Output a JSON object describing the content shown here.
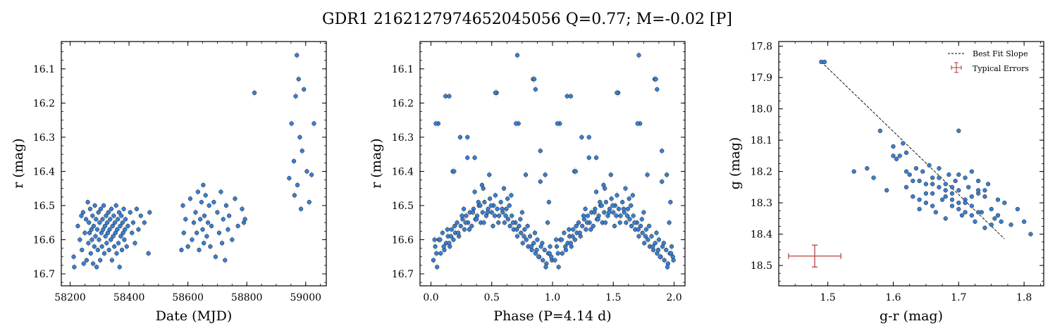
{
  "figure": {
    "title": "GDR1 2162127974652045056  Q=0.77; M=-0.02 [P]"
  },
  "chart_data": [
    {
      "type": "scatter",
      "id": "lightcurve",
      "xlabel": "Date (MJD)",
      "ylabel": "r (mag)",
      "xlim": [
        58170,
        59070
      ],
      "ylim": [
        16.735,
        16.02
      ],
      "y_inverted": true,
      "xticks": [
        58200,
        58400,
        58600,
        58800,
        59000
      ],
      "yticks": [
        16.1,
        16.2,
        16.3,
        16.4,
        16.5,
        16.6,
        16.7
      ],
      "xtick_labels": [
        "58200",
        "58400",
        "58600",
        "58800",
        "59000"
      ],
      "ytick_labels": [
        "16.1",
        "16.2",
        "16.3",
        "16.4",
        "16.5",
        "16.6",
        "16.7"
      ],
      "marker_color": "#3a7fd0",
      "error_color": "#d9d9d9",
      "points": {
        "x": [
          58212,
          58214,
          58226,
          58233,
          58238,
          58240,
          58244,
          58246,
          58250,
          58254,
          58256,
          58260,
          58262,
          58264,
          58266,
          58268,
          58270,
          58272,
          58274,
          58276,
          58278,
          58280,
          58282,
          58284,
          58286,
          58288,
          58290,
          58292,
          58294,
          58296,
          58298,
          58300,
          58302,
          58304,
          58306,
          58308,
          58310,
          58312,
          58314,
          58316,
          58318,
          58320,
          58322,
          58324,
          58326,
          58328,
          58330,
          58332,
          58334,
          58336,
          58338,
          58340,
          58342,
          58344,
          58346,
          58348,
          58350,
          58352,
          58354,
          58356,
          58358,
          58360,
          58362,
          58364,
          58366,
          58368,
          58370,
          58372,
          58374,
          58376,
          58378,
          58380,
          58382,
          58384,
          58386,
          58388,
          58392,
          58396,
          58404,
          58410,
          58414,
          58420,
          58426,
          58432,
          58440,
          58452,
          58466,
          58470,
          58578,
          58583,
          58586,
          58592,
          58600,
          58608,
          58614,
          58620,
          58626,
          58630,
          58634,
          58638,
          58642,
          58646,
          58650,
          58652,
          58654,
          58656,
          58660,
          58664,
          58668,
          58672,
          58676,
          58680,
          58688,
          58694,
          58700,
          58706,
          58712,
          58716,
          58720,
          58726,
          58730,
          58736,
          58740,
          58750,
          58760,
          58770,
          58784,
          58790,
          58794,
          58826,
          58944,
          58952,
          58960,
          58962,
          58966,
          58970,
          58972,
          58976,
          58980,
          58984,
          58988,
          58994,
          59004,
          59012,
          59020,
          59028
        ],
        "y": [
          16.65,
          16.68,
          16.56,
          16.6,
          16.53,
          16.63,
          16.52,
          16.67,
          16.58,
          16.54,
          16.66,
          16.49,
          16.61,
          16.55,
          16.58,
          16.51,
          16.64,
          16.57,
          16.6,
          16.53,
          16.67,
          16.56,
          16.62,
          16.5,
          16.59,
          16.54,
          16.68,
          16.57,
          16.63,
          16.52,
          16.6,
          16.55,
          16.66,
          16.51,
          16.58,
          16.62,
          16.54,
          16.57,
          16.5,
          16.64,
          16.56,
          16.59,
          16.53,
          16.61,
          16.55,
          16.58,
          16.52,
          16.63,
          16.57,
          16.54,
          16.6,
          16.51,
          16.66,
          16.56,
          16.59,
          16.53,
          16.62,
          16.55,
          16.58,
          16.5,
          16.64,
          16.57,
          16.54,
          16.61,
          16.52,
          16.68,
          16.56,
          16.59,
          16.53,
          16.63,
          16.55,
          16.58,
          16.51,
          16.6,
          16.57,
          16.54,
          16.62,
          16.56,
          16.52,
          16.58,
          16.55,
          16.61,
          16.51,
          16.57,
          16.53,
          16.55,
          16.64,
          16.52,
          16.63,
          16.5,
          16.58,
          16.54,
          16.62,
          16.48,
          16.6,
          16.55,
          16.52,
          16.58,
          16.46,
          16.63,
          16.54,
          16.49,
          16.57,
          16.44,
          16.61,
          16.53,
          16.47,
          16.59,
          16.55,
          16.5,
          16.62,
          16.56,
          16.49,
          16.65,
          16.52,
          16.58,
          16.46,
          16.61,
          16.54,
          16.66,
          16.5,
          16.57,
          16.53,
          16.6,
          16.48,
          16.56,
          16.51,
          16.55,
          16.54,
          16.17,
          16.42,
          16.26,
          16.37,
          16.47,
          16.18,
          16.06,
          16.44,
          16.13,
          16.3,
          16.51,
          16.34,
          16.16,
          16.4,
          16.49,
          16.41,
          16.26
        ]
      }
    },
    {
      "type": "scatter",
      "id": "phased",
      "xlabel": "Phase (P=4.14 d)",
      "ylabel": "r (mag)",
      "xlim": [
        -0.09,
        2.09
      ],
      "ylim": [
        16.735,
        16.02
      ],
      "y_inverted": true,
      "xticks": [
        0.0,
        0.5,
        1.0,
        1.5,
        2.0
      ],
      "yticks": [
        16.1,
        16.2,
        16.3,
        16.4,
        16.5,
        16.6,
        16.7
      ],
      "xtick_labels": [
        "0.0",
        "0.5",
        "1.0",
        "1.5",
        "2.0"
      ],
      "ytick_labels": [
        "16.1",
        "16.2",
        "16.3",
        "16.4",
        "16.5",
        "16.6",
        "16.7"
      ],
      "marker_color": "#3a7fd0",
      "error_color": "#d9d9d9",
      "period_days": 4.14,
      "amplitude_mag": 0.055,
      "mean_mag": 16.595,
      "points": {
        "phase": [
          0.02,
          0.035,
          0.05,
          0.065,
          0.08,
          0.095,
          0.11,
          0.125,
          0.14,
          0.155,
          0.17,
          0.185,
          0.2,
          0.215,
          0.23,
          0.245,
          0.26,
          0.275,
          0.29,
          0.305,
          0.32,
          0.335,
          0.35,
          0.365,
          0.38,
          0.395,
          0.41,
          0.425,
          0.44,
          0.455,
          0.47,
          0.485,
          0.5,
          0.515,
          0.53,
          0.545,
          0.56,
          0.575,
          0.59,
          0.605,
          0.62,
          0.635,
          0.65,
          0.665,
          0.68,
          0.695,
          0.71,
          0.725,
          0.74,
          0.755,
          0.77,
          0.785,
          0.8,
          0.815,
          0.83,
          0.845,
          0.86,
          0.875,
          0.89,
          0.905,
          0.92,
          0.935,
          0.95,
          0.965,
          0.98,
          0.995,
          0.045,
          0.075,
          0.105,
          0.135,
          0.165,
          0.195,
          0.225,
          0.255,
          0.285,
          0.315,
          0.345,
          0.375,
          0.405,
          0.435,
          0.465,
          0.495,
          0.525,
          0.555,
          0.585,
          0.615,
          0.645,
          0.675,
          0.705,
          0.735,
          0.765,
          0.795,
          0.825,
          0.855,
          0.885,
          0.915,
          0.945,
          0.975,
          0.06,
          0.12,
          0.18,
          0.24,
          0.3,
          0.36,
          0.42,
          0.48,
          0.54,
          0.6,
          0.66,
          0.72,
          0.78,
          0.84,
          0.9,
          0.96,
          0.03,
          0.15,
          0.27,
          0.39,
          0.51,
          0.63,
          0.75,
          0.87,
          0.99
        ],
        "mag": [
          16.66,
          16.62,
          16.68,
          16.6,
          16.64,
          16.58,
          16.63,
          16.61,
          16.59,
          16.62,
          16.57,
          16.6,
          16.58,
          16.55,
          16.59,
          16.56,
          16.54,
          16.57,
          16.53,
          16.55,
          16.52,
          16.56,
          16.51,
          16.54,
          16.53,
          16.5,
          16.55,
          16.52,
          16.49,
          16.53,
          16.51,
          16.48,
          16.52,
          16.5,
          16.47,
          16.51,
          16.53,
          16.49,
          16.52,
          16.55,
          16.51,
          16.54,
          16.56,
          16.53,
          16.57,
          16.55,
          16.59,
          16.56,
          16.58,
          16.61,
          16.57,
          16.6,
          16.62,
          16.59,
          16.63,
          16.61,
          16.64,
          16.6,
          16.65,
          16.62,
          16.66,
          16.63,
          16.67,
          16.64,
          16.62,
          16.66,
          16.64,
          16.6,
          16.62,
          16.57,
          16.59,
          16.56,
          16.58,
          16.53,
          16.55,
          16.57,
          16.52,
          16.54,
          16.5,
          16.55,
          16.52,
          16.5,
          16.53,
          16.55,
          16.51,
          16.53,
          16.5,
          16.55,
          16.57,
          16.54,
          16.59,
          16.56,
          16.62,
          16.58,
          16.65,
          16.61,
          16.68,
          16.64,
          16.26,
          16.18,
          16.4,
          16.3,
          16.36,
          16.46,
          16.44,
          16.41,
          16.17,
          16.45,
          16.47,
          16.26,
          16.41,
          16.13,
          16.43,
          16.55,
          16.6,
          16.61,
          16.51,
          16.49,
          16.56,
          16.48,
          16.52,
          16.63,
          16.65
        ],
        "outliers_phase": [
          0.04,
          0.15,
          0.19,
          0.3,
          0.36,
          0.43,
          0.53,
          0.7,
          0.71,
          0.85,
          0.86,
          0.9,
          0.94,
          0.97
        ],
        "outliers_mag": [
          16.26,
          16.18,
          16.4,
          16.3,
          16.36,
          16.45,
          16.17,
          16.26,
          16.06,
          16.13,
          16.16,
          16.34,
          16.41,
          16.49
        ]
      }
    },
    {
      "type": "scatter",
      "id": "color-magnitude",
      "xlabel": "g-r (mag)",
      "ylabel": "g (mag)",
      "xlim": [
        1.425,
        1.83
      ],
      "ylim": [
        18.565,
        17.785
      ],
      "y_inverted": true,
      "xticks": [
        1.5,
        1.6,
        1.7,
        1.8
      ],
      "yticks": [
        17.8,
        17.9,
        18.0,
        18.1,
        18.2,
        18.3,
        18.4,
        18.5
      ],
      "xtick_labels": [
        "1.5",
        "1.6",
        "1.7",
        "1.8"
      ],
      "ytick_labels": [
        "17.8",
        "17.9",
        "18.0",
        "18.1",
        "18.2",
        "18.3",
        "18.4",
        "18.5"
      ],
      "marker_color": "#3a7fd0",
      "legend": {
        "placement": "top-right",
        "entries": [
          "Best Fit Slope",
          "Typical Errors"
        ]
      },
      "best_fit": {
        "x": [
          1.49,
          1.77
        ],
        "y": [
          17.85,
          18.415
        ],
        "color": "#000000",
        "style": "dashed"
      },
      "typical_error": {
        "x": 1.48,
        "y": 18.47,
        "xerr": 0.04,
        "yerr": 0.035,
        "color": "#c0504d"
      },
      "points": {
        "x": [
          1.49,
          1.495,
          1.54,
          1.56,
          1.57,
          1.58,
          1.59,
          1.6,
          1.6,
          1.605,
          1.61,
          1.615,
          1.62,
          1.62,
          1.625,
          1.63,
          1.635,
          1.64,
          1.64,
          1.645,
          1.65,
          1.65,
          1.655,
          1.66,
          1.66,
          1.665,
          1.67,
          1.67,
          1.675,
          1.68,
          1.68,
          1.685,
          1.69,
          1.69,
          1.695,
          1.7,
          1.7,
          1.705,
          1.71,
          1.71,
          1.715,
          1.72,
          1.72,
          1.725,
          1.73,
          1.73,
          1.735,
          1.74,
          1.74,
          1.745,
          1.75,
          1.755,
          1.76,
          1.765,
          1.77,
          1.78,
          1.79,
          1.8,
          1.81,
          1.7,
          1.68,
          1.66,
          1.72,
          1.74,
          1.62,
          1.64,
          1.67,
          1.69,
          1.71,
          1.73,
          1.75,
          1.65,
          1.63,
          1.68,
          1.7,
          1.72,
          1.76,
          1.66,
          1.69,
          1.71,
          1.73,
          1.7
        ],
        "y": [
          17.85,
          17.85,
          18.2,
          18.19,
          18.22,
          18.07,
          18.26,
          18.12,
          18.15,
          18.16,
          18.15,
          18.11,
          18.14,
          18.25,
          18.21,
          18.28,
          18.19,
          18.23,
          18.32,
          18.2,
          18.24,
          18.3,
          18.18,
          18.27,
          18.22,
          18.33,
          18.25,
          18.19,
          18.29,
          18.24,
          18.35,
          18.21,
          18.27,
          18.31,
          18.23,
          18.07,
          18.26,
          18.34,
          18.22,
          18.29,
          18.25,
          18.31,
          18.2,
          18.36,
          18.27,
          18.23,
          18.33,
          18.28,
          18.38,
          18.24,
          18.32,
          18.35,
          18.29,
          18.36,
          18.3,
          18.37,
          18.32,
          18.36,
          18.4,
          18.21,
          18.26,
          18.31,
          18.34,
          18.26,
          18.2,
          18.29,
          18.22,
          18.25,
          18.3,
          18.33,
          18.37,
          18.27,
          18.23,
          18.28,
          18.32,
          18.28,
          18.34,
          18.24,
          18.29,
          18.33,
          18.26,
          18.3
        ]
      }
    }
  ]
}
